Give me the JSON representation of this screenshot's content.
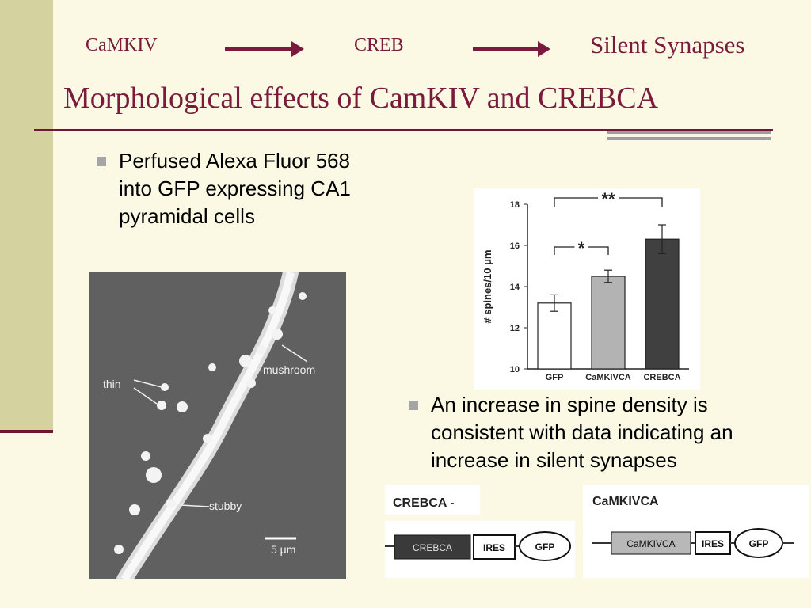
{
  "header": {
    "flow": [
      "CaMKIV",
      "CREB",
      "Silent Synapses"
    ],
    "title": "Morphological effects of CamKIV and CREBCA"
  },
  "bullets": [
    "Perfused Alexa Fluor 568 into GFP expressing CA1 pyramidal cells",
    "An increase in spine density is consistent with data indicating an increase in silent synapses"
  ],
  "micrograph": {
    "labels": {
      "thin": "thin",
      "mushroom": "mushroom",
      "stubby": "stubby",
      "scale": "5 μm"
    }
  },
  "chart_data": {
    "type": "bar",
    "categories": [
      "GFP",
      "CaMKIVCA",
      "CREBCA"
    ],
    "values": [
      13.2,
      14.5,
      16.3
    ],
    "errors": [
      0.4,
      0.3,
      0.7
    ],
    "ylabel": "# spines/10 μm",
    "ylim": [
      10,
      18
    ],
    "yticks": [
      10,
      12,
      14,
      16,
      18
    ],
    "bar_colors": [
      "#ffffff",
      "#b3b3b3",
      "#404040"
    ],
    "annotations": [
      {
        "label": "*",
        "from": "GFP",
        "to": "CaMKIVCA"
      },
      {
        "label": "**",
        "from": "GFP",
        "to": "CREBCA"
      }
    ]
  },
  "constructs": {
    "left": {
      "title": "CREBCA -",
      "parts": [
        "CREBCA",
        "IRES",
        "GFP"
      ]
    },
    "right": {
      "title": "CaMKIVCA",
      "parts": [
        "CaMKIVCA",
        "IRES",
        "GFP"
      ]
    }
  }
}
